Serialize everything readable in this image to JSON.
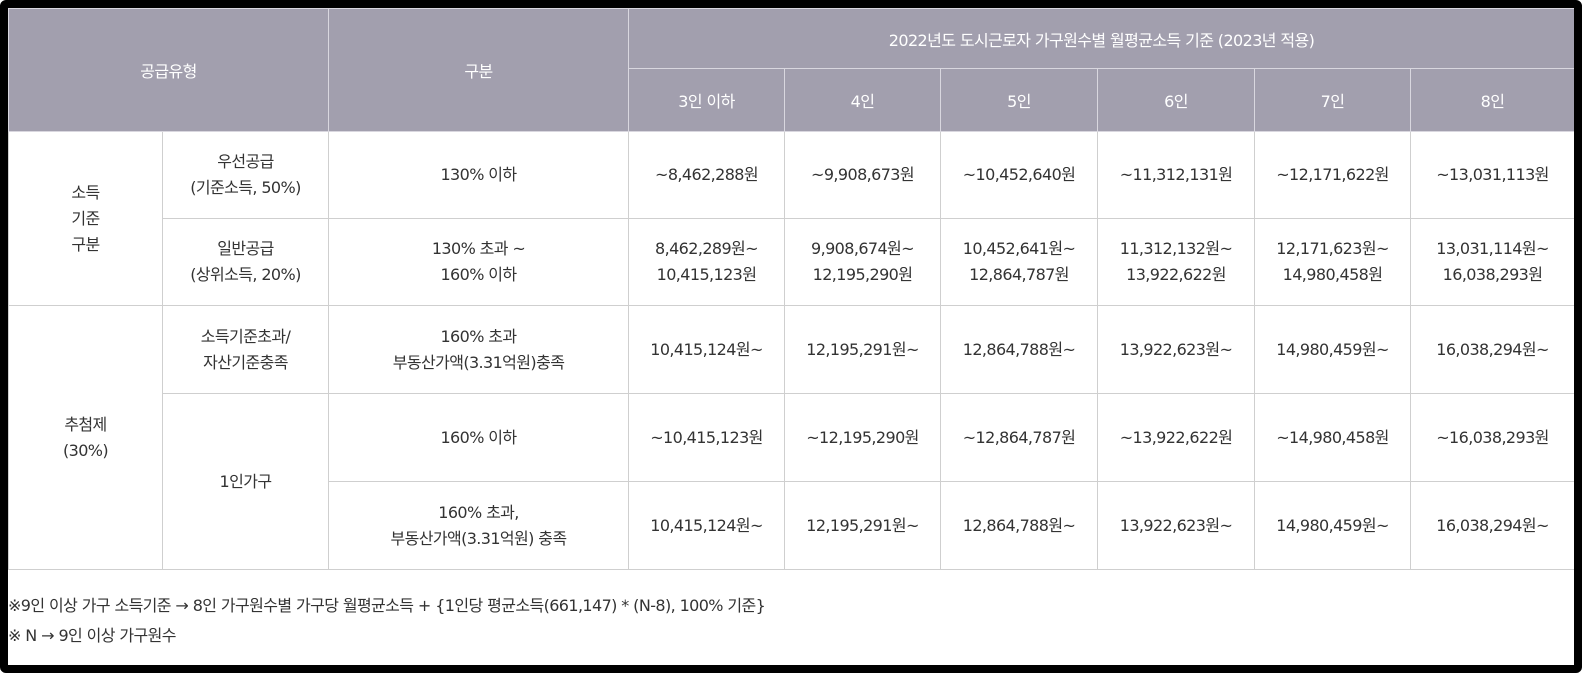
{
  "header": {
    "supply_type": "공급유형",
    "category": "구분",
    "income_title": "2022년도 도시근로자 가구원수별 월평균소득 기준 (2023년 적용)",
    "household_sizes": [
      "3인 이하",
      "4인",
      "5인",
      "6인",
      "7인",
      "8인"
    ]
  },
  "groups": {
    "income_standard": [
      "소득",
      "기준",
      "구분"
    ],
    "lottery": [
      "추첨제",
      "(30%)"
    ]
  },
  "rows": [
    {
      "sub": [
        "우선공급",
        "(기준소득, 50%)"
      ],
      "criteria": [
        "130% 이하"
      ],
      "values": [
        [
          "~8,462,288원"
        ],
        [
          "~9,908,673원"
        ],
        [
          "~10,452,640원"
        ],
        [
          "~11,312,131원"
        ],
        [
          "~12,171,622원"
        ],
        [
          "~13,031,113원"
        ]
      ]
    },
    {
      "sub": [
        "일반공급",
        "(상위소득, 20%)"
      ],
      "criteria": [
        "130% 초과 ~",
        "160% 이하"
      ],
      "values": [
        [
          "8,462,289원~",
          "10,415,123원"
        ],
        [
          "9,908,674원~",
          "12,195,290원"
        ],
        [
          "10,452,641원~",
          "12,864,787원"
        ],
        [
          "11,312,132원~",
          "13,922,622원"
        ],
        [
          "12,171,623원~",
          "14,980,458원"
        ],
        [
          "13,031,114원~",
          "16,038,293원"
        ]
      ]
    },
    {
      "sub": [
        "소득기준초과/",
        "자산기준충족"
      ],
      "criteria": [
        "160% 초과",
        "부동산가액(3.31억원)충족"
      ],
      "values": [
        [
          "10,415,124원~"
        ],
        [
          "12,195,291원~"
        ],
        [
          "12,864,788원~"
        ],
        [
          "13,922,623원~"
        ],
        [
          "14,980,459원~"
        ],
        [
          "16,038,294원~"
        ]
      ]
    },
    {
      "sub": [
        "1인가구"
      ],
      "criteria": [
        "160% 이하"
      ],
      "values": [
        [
          "~10,415,123원"
        ],
        [
          "~12,195,290원"
        ],
        [
          "~12,864,787원"
        ],
        [
          "~13,922,622원"
        ],
        [
          "~14,980,458원"
        ],
        [
          "~16,038,293원"
        ]
      ]
    },
    {
      "criteria": [
        "160% 초과,",
        "부동산가액(3.31억원) 충족"
      ],
      "values": [
        [
          "10,415,124원~"
        ],
        [
          "12,195,291원~"
        ],
        [
          "12,864,788원~"
        ],
        [
          "13,922,623원~"
        ],
        [
          "14,980,459원~"
        ],
        [
          "16,038,294원~"
        ]
      ]
    }
  ],
  "notes": [
    "※9인 이상 가구 소득기준 → 8인 가구원수별 가구당 월평균소득 + {1인당 평균소득(661,147) * (N-8), 100% 기준}",
    "※ N → 9인 이상 가구원수"
  ],
  "colors": {
    "header_bg": "#a29fae",
    "header_text": "#ffffff",
    "border": "#cfcfcf",
    "frame": "#000000"
  }
}
